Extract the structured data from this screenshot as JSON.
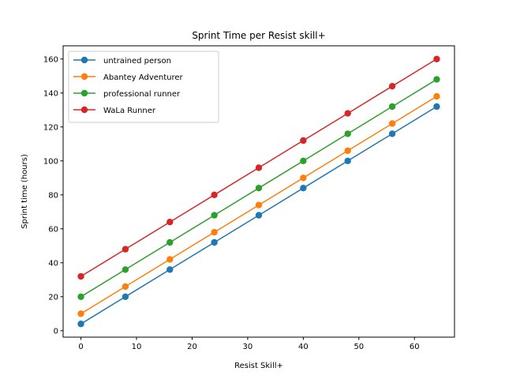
{
  "chart_data": {
    "type": "line",
    "title": "Sprint Time per Resist skill+",
    "xlabel": "Resist Skill+",
    "ylabel": "Sprint time (hours)",
    "x": [
      0,
      8,
      16,
      24,
      32,
      40,
      48,
      56,
      64
    ],
    "xlim": [
      -3.2,
      67.2
    ],
    "ylim": [
      -3.8,
      167.8
    ],
    "xticks": [
      0,
      10,
      20,
      30,
      40,
      50,
      60
    ],
    "yticks": [
      0,
      20,
      40,
      60,
      80,
      100,
      120,
      140,
      160
    ],
    "grid": false,
    "legend_position": "upper left",
    "series": [
      {
        "name": "untrained person",
        "color": "#1f77b4",
        "values": [
          4,
          20,
          36,
          52,
          68,
          84,
          100,
          116,
          132
        ]
      },
      {
        "name": "Abantey Adventurer",
        "color": "#ff7f0e",
        "values": [
          10,
          26,
          42,
          58,
          74,
          90,
          106,
          122,
          138
        ]
      },
      {
        "name": "professional runner",
        "color": "#2ca02c",
        "values": [
          20,
          36,
          52,
          68,
          84,
          100,
          116,
          132,
          148
        ]
      },
      {
        "name": "WaLa Runner",
        "color": "#d62728",
        "values": [
          32,
          48,
          64,
          80,
          96,
          112,
          128,
          144,
          160
        ]
      }
    ]
  }
}
